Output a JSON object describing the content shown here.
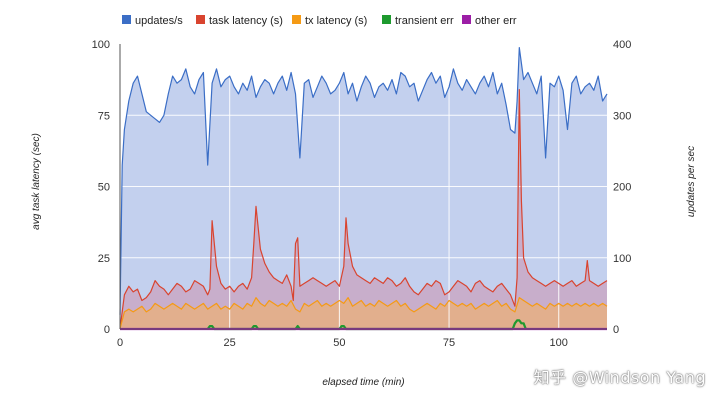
{
  "chart_data": {
    "type": "area",
    "x_range": [
      0,
      111
    ],
    "left_axis": {
      "label": "avg task latency (sec)",
      "range": [
        0,
        100
      ],
      "ticks": [
        0,
        25,
        50,
        75,
        100
      ]
    },
    "right_axis": {
      "label": "updates per sec",
      "range": [
        0,
        400
      ],
      "ticks": [
        0,
        100,
        200,
        300,
        400
      ]
    },
    "x_axis": {
      "label": "elapsed time (min)",
      "ticks": [
        0,
        25,
        50,
        75,
        100
      ]
    },
    "grid": true,
    "legend_position": "top",
    "series": [
      {
        "name": "updates/s",
        "axis": "right",
        "color": "#3b6ec6",
        "fill": "#c3d0ee",
        "x": [
          0,
          0.5,
          1,
          2,
          3,
          4,
          5,
          6,
          7,
          8,
          9,
          10,
          11,
          12,
          13,
          14,
          15,
          16,
          17,
          18,
          19,
          20,
          21,
          22,
          23,
          24,
          25,
          26,
          27,
          28,
          29,
          30,
          31,
          32,
          33,
          34,
          35,
          36,
          37,
          38,
          39,
          40,
          41,
          42,
          43,
          44,
          45,
          46,
          47,
          48,
          49,
          50,
          51,
          52,
          53,
          54,
          55,
          56,
          57,
          58,
          59,
          60,
          61,
          62,
          63,
          64,
          65,
          66,
          67,
          68,
          69,
          70,
          71,
          72,
          73,
          74,
          75,
          76,
          77,
          78,
          79,
          80,
          81,
          82,
          83,
          84,
          85,
          86,
          87,
          88,
          89,
          90,
          90.5,
          91,
          92,
          93,
          94,
          95,
          96,
          97,
          98,
          99,
          100,
          101,
          102,
          103,
          104,
          105,
          106,
          107,
          108,
          109,
          110,
          111
        ],
        "values": [
          20,
          230,
          280,
          320,
          345,
          355,
          330,
          305,
          300,
          295,
          290,
          300,
          330,
          355,
          345,
          350,
          365,
          340,
          330,
          350,
          360,
          230,
          345,
          365,
          340,
          350,
          355,
          340,
          330,
          345,
          335,
          355,
          325,
          340,
          350,
          345,
          330,
          345,
          355,
          335,
          360,
          330,
          240,
          345,
          350,
          325,
          340,
          355,
          345,
          330,
          335,
          345,
          360,
          330,
          345,
          320,
          340,
          355,
          345,
          325,
          340,
          345,
          335,
          350,
          330,
          360,
          355,
          340,
          345,
          320,
          335,
          350,
          360,
          345,
          355,
          325,
          340,
          365,
          345,
          335,
          350,
          340,
          330,
          345,
          355,
          340,
          360,
          330,
          345,
          315,
          280,
          275,
          320,
          395,
          350,
          360,
          345,
          330,
          355,
          240,
          345,
          340,
          355,
          335,
          280,
          345,
          355,
          330,
          340,
          345,
          335,
          355,
          320,
          330
        ]
      },
      {
        "name": "task latency (s)",
        "axis": "left",
        "color": "#d9442f",
        "fill": "#c9a8c4",
        "x": [
          0,
          1,
          2,
          3,
          4,
          5,
          6,
          7,
          8,
          9,
          10,
          11,
          12,
          13,
          14,
          15,
          16,
          17,
          18,
          19,
          20,
          20.5,
          21,
          22,
          23,
          24,
          25,
          26,
          27,
          28,
          29,
          30,
          30.5,
          31,
          32,
          33,
          34,
          35,
          36,
          37,
          38,
          39,
          39.5,
          40,
          40.5,
          41,
          42,
          43,
          44,
          45,
          46,
          47,
          48,
          49,
          50,
          51,
          51.5,
          52,
          53,
          54,
          55,
          56,
          57,
          58,
          59,
          60,
          61,
          62,
          63,
          64,
          65,
          66,
          67,
          68,
          69,
          70,
          71,
          72,
          73,
          74,
          75,
          76,
          77,
          78,
          79,
          80,
          81,
          82,
          83,
          84,
          85,
          86,
          87,
          88,
          89,
          90,
          90.5,
          91,
          91.5,
          92,
          93,
          94,
          95,
          96,
          97,
          98,
          99,
          100,
          101,
          102,
          103,
          104,
          105,
          106,
          106.5,
          107,
          108,
          109,
          110,
          111
        ],
        "values": [
          0,
          12,
          15,
          13,
          14,
          10,
          11,
          13,
          17,
          15,
          14,
          12,
          14,
          16,
          15,
          13,
          14,
          17,
          16,
          15,
          12,
          14,
          38,
          22,
          16,
          14,
          15,
          13,
          15,
          16,
          14,
          18,
          30,
          43,
          28,
          23,
          20,
          18,
          17,
          16,
          19,
          15,
          10,
          30,
          32,
          15,
          16,
          17,
          18,
          17,
          16,
          15,
          16,
          17,
          15,
          22,
          39,
          30,
          22,
          19,
          18,
          17,
          16,
          18,
          17,
          16,
          18,
          17,
          15,
          16,
          18,
          15,
          13,
          12,
          14,
          16,
          15,
          17,
          16,
          12,
          13,
          15,
          17,
          16,
          15,
          13,
          16,
          17,
          15,
          14,
          13,
          15,
          16,
          14,
          12,
          8,
          18,
          84,
          45,
          25,
          20,
          18,
          17,
          16,
          15,
          16,
          17,
          16,
          15,
          16,
          17,
          15,
          16,
          17,
          24,
          17,
          16,
          15,
          16,
          17
        ]
      },
      {
        "name": "tx latency (s)",
        "axis": "left",
        "color": "#f59a14",
        "fill": "#e6af82",
        "x": [
          0,
          1,
          2,
          3,
          4,
          5,
          6,
          7,
          8,
          9,
          10,
          11,
          12,
          13,
          14,
          15,
          16,
          17,
          18,
          19,
          20,
          21,
          22,
          23,
          24,
          25,
          26,
          27,
          28,
          29,
          30,
          31,
          32,
          33,
          34,
          35,
          36,
          37,
          38,
          39,
          40,
          41,
          42,
          43,
          44,
          45,
          46,
          47,
          48,
          49,
          50,
          51,
          52,
          53,
          54,
          55,
          56,
          57,
          58,
          59,
          60,
          61,
          62,
          63,
          64,
          65,
          66,
          67,
          68,
          69,
          70,
          71,
          72,
          73,
          74,
          75,
          76,
          77,
          78,
          79,
          80,
          81,
          82,
          83,
          84,
          85,
          86,
          87,
          88,
          89,
          90,
          91,
          92,
          93,
          94,
          95,
          96,
          97,
          98,
          99,
          100,
          101,
          102,
          103,
          104,
          105,
          106,
          107,
          108,
          109,
          110,
          111
        ],
        "values": [
          0,
          6,
          7,
          6,
          7,
          8,
          6,
          7,
          9,
          8,
          7,
          8,
          9,
          8,
          7,
          9,
          8,
          7,
          8,
          9,
          7,
          8,
          9,
          7,
          8,
          7,
          9,
          8,
          7,
          9,
          8,
          11,
          9,
          8,
          10,
          9,
          8,
          9,
          8,
          10,
          7,
          6,
          9,
          8,
          9,
          10,
          8,
          9,
          8,
          9,
          10,
          9,
          11,
          8,
          9,
          10,
          8,
          9,
          8,
          10,
          9,
          8,
          9,
          10,
          8,
          9,
          7,
          6,
          7,
          8,
          9,
          8,
          7,
          9,
          8,
          10,
          9,
          8,
          9,
          8,
          9,
          7,
          8,
          9,
          8,
          9,
          10,
          8,
          9,
          7,
          6,
          11,
          10,
          9,
          8,
          9,
          8,
          7,
          9,
          8,
          9,
          8,
          9,
          8,
          9,
          8,
          9,
          8,
          9,
          8,
          9,
          8
        ]
      },
      {
        "name": "transient err",
        "axis": "left",
        "color": "#1e9a2e",
        "x": [
          20,
          20.5,
          21,
          21.5,
          30,
          30.5,
          31,
          31.5,
          40,
          40.5,
          41,
          50,
          50.5,
          51,
          51.5,
          89.5,
          90,
          90.5,
          91,
          91.5,
          92,
          92.5
        ],
        "values": [
          0,
          1,
          1,
          0,
          0,
          1,
          1,
          0,
          0,
          1,
          0,
          0,
          1,
          1,
          0,
          0,
          2,
          3,
          3,
          2,
          2,
          0
        ]
      },
      {
        "name": "other err",
        "axis": "left",
        "color": "#9c1ea6",
        "x": [
          0,
          111
        ],
        "values": [
          0,
          0
        ]
      }
    ]
  },
  "watermark": "知乎 @Windson Yang"
}
